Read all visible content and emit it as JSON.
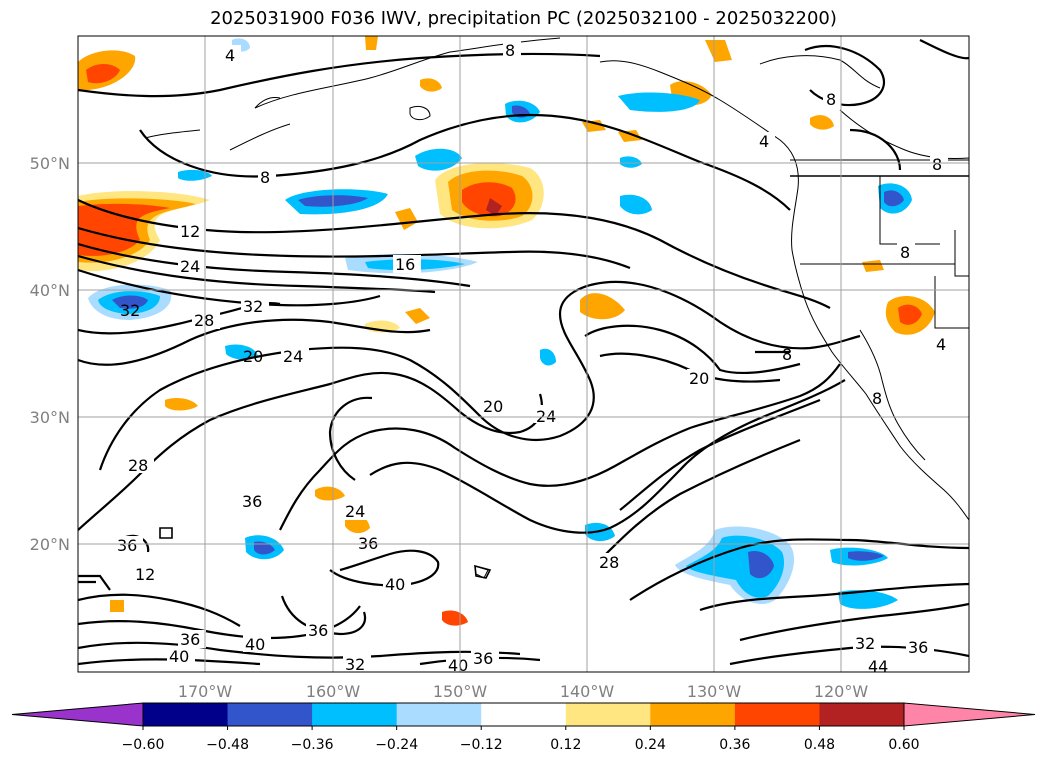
{
  "title": "2025031900 F036 IWV, precipitation PC (2025032100 - 2025032200)",
  "map": {
    "lat_labels": [
      "50°N",
      "40°N",
      "30°N",
      "20°N"
    ],
    "lon_labels": [
      "170°W",
      "160°W",
      "150°W",
      "140°W",
      "130°W",
      "120°W"
    ],
    "contour_labels": [
      "4",
      "8",
      "8",
      "8",
      "4",
      "8",
      "8",
      "12",
      "24",
      "16",
      "32",
      "32",
      "28",
      "20",
      "24",
      "20",
      "20",
      "24",
      "8",
      "4",
      "8",
      "28",
      "36",
      "36",
      "24",
      "36",
      "40",
      "28",
      "12",
      "36",
      "40",
      "36",
      "40",
      "40",
      "32",
      "36",
      "32",
      "36",
      "44"
    ]
  },
  "colorbar": {
    "ticks": [
      "−0.60",
      "−0.48",
      "−0.36",
      "−0.24",
      "−0.12",
      "0.12",
      "0.24",
      "0.36",
      "0.48",
      "0.60"
    ],
    "colors": [
      "#9933cc",
      "#00008b",
      "#3355cc",
      "#00bfff",
      "#aadcff",
      "#ffffff",
      "#ffe680",
      "#ffa500",
      "#ff4500",
      "#b22222",
      "#ff85a8"
    ]
  }
}
